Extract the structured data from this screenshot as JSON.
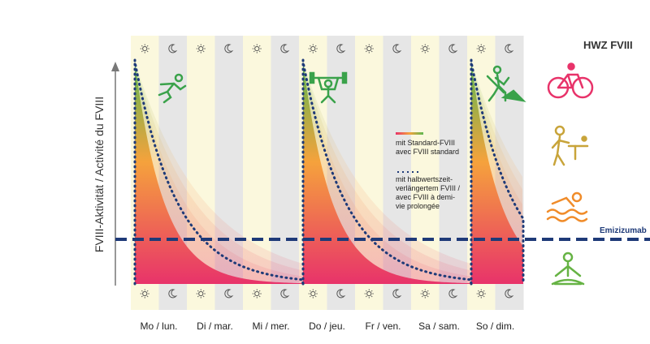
{
  "chart_data": {
    "type": "line",
    "title": "",
    "ylabel": "FVIII-Aktivität / Activité du FVIII",
    "categories": [
      "Mo / lun.",
      "Di / mar.",
      "Mi / mer.",
      "Do / jeu.",
      "Fr / ven.",
      "Sa / sam.",
      "So / dim."
    ],
    "dose_days": [
      "Mo / lun.",
      "Do / jeu.",
      "So / dim."
    ],
    "series": [
      {
        "name": "mit Standard-FVIII avec FVIII standard",
        "style": "gradient-fill"
      },
      {
        "name": "mit halbwertszeit-verlängertem FVIII / avec FVIII à demi-vie prolongée",
        "style": "dotted"
      }
    ],
    "reference_line": {
      "label": "Emizizumab",
      "level_fraction": 0.2,
      "color": "#1e3a78"
    },
    "hwz_label": "HWZ FVIII",
    "activities": [
      "cycling",
      "table tennis",
      "swimming",
      "yoga"
    ],
    "period_icons": [
      "sun",
      "moon"
    ]
  },
  "colors": {
    "day": "#fbf8dd",
    "night": "#e6e6e6",
    "gradient_top": "#5db850",
    "gradient_mid": "#f5a23c",
    "gradient_bottom": "#e8336a",
    "dotted": "#1e3a78",
    "activity_cycling": "#e8336a",
    "activity_swim": "#f08c2a",
    "activity_pingpong": "#c8a43a",
    "activity_yoga": "#66b344"
  }
}
